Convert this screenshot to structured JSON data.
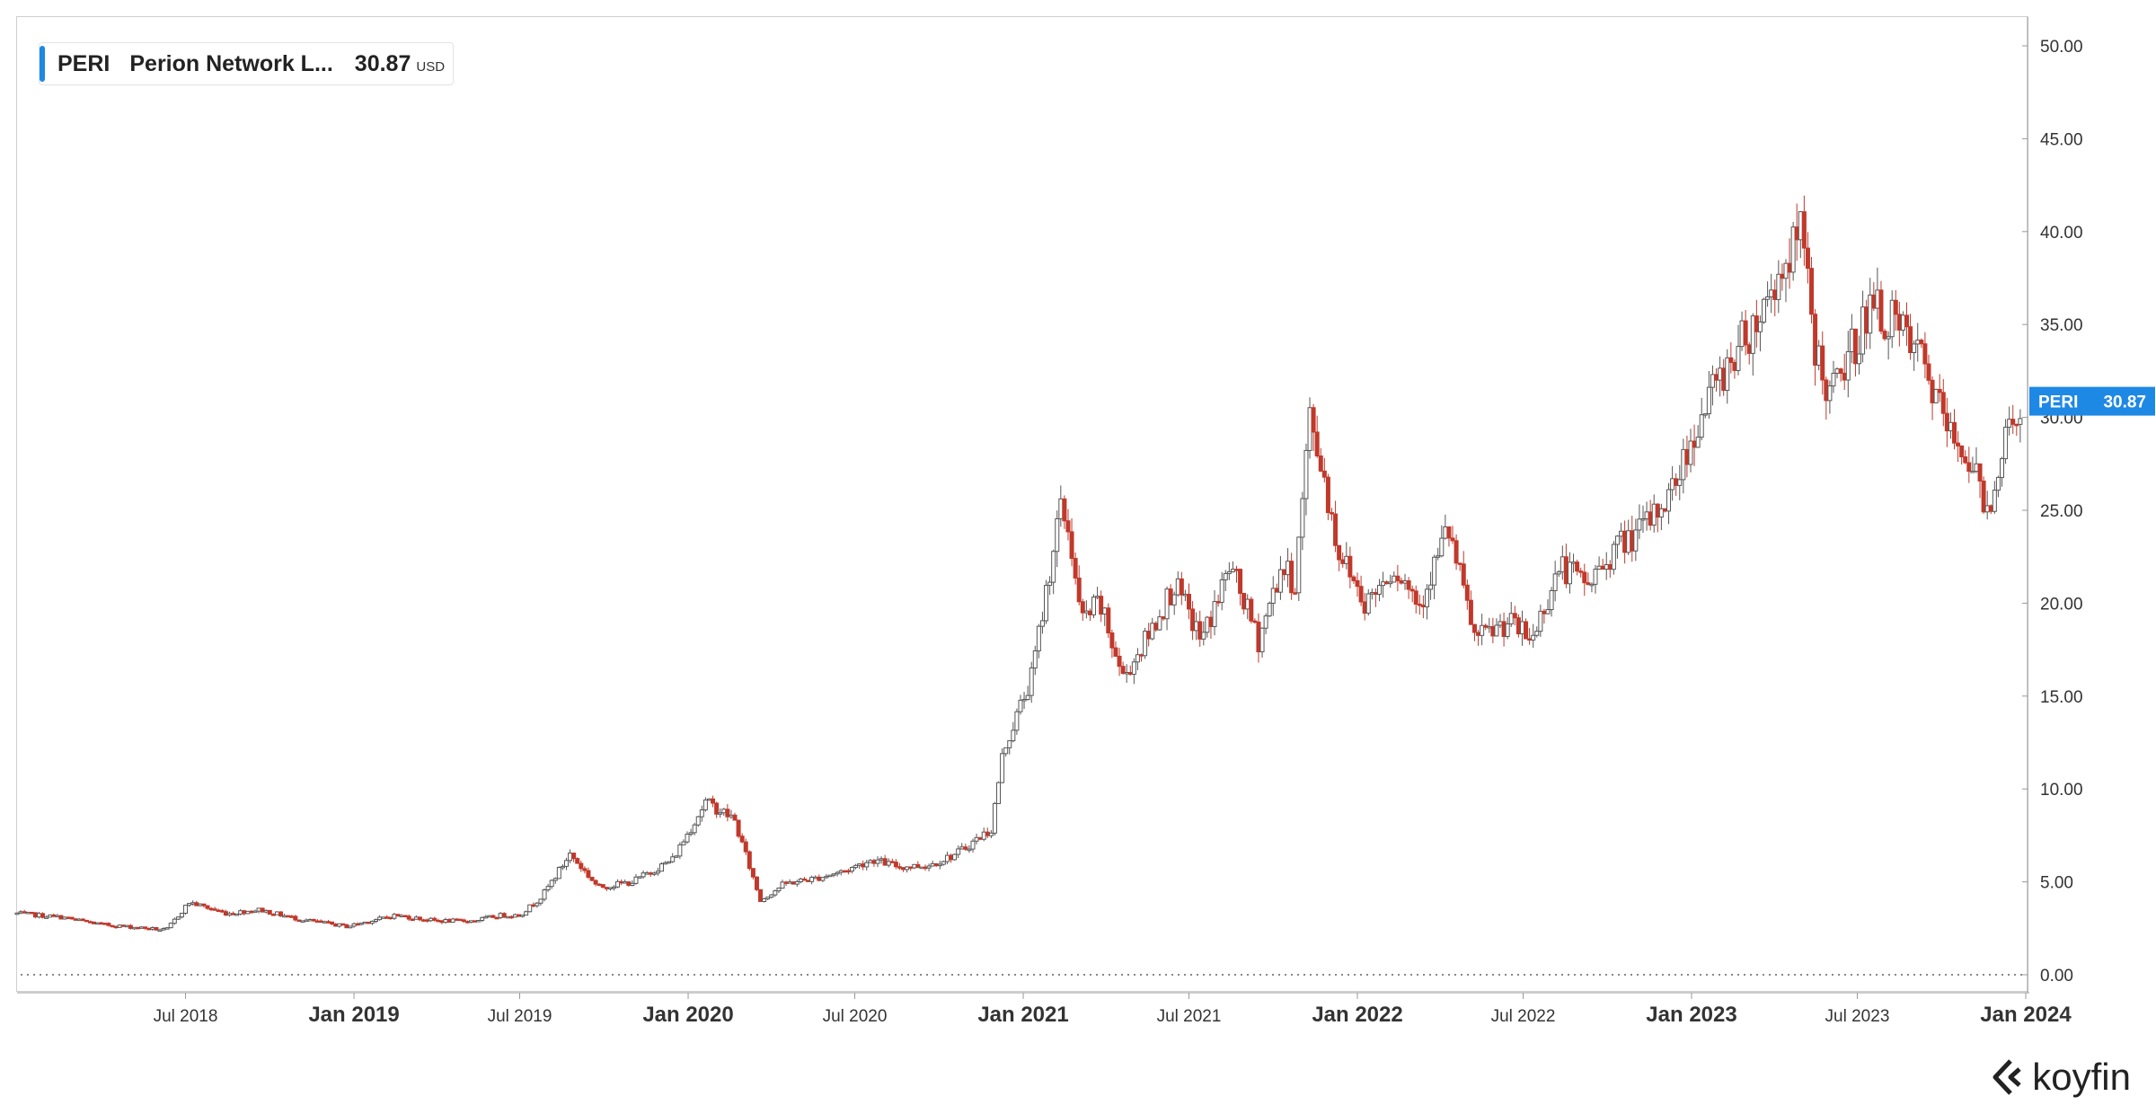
{
  "legend": {
    "ticker": "PERI",
    "name": "Perion Network L...",
    "price": "30.87",
    "currency": "USD",
    "accent": "#1e88e5"
  },
  "price_tag": {
    "ticker": "PERI",
    "value": "30.87",
    "color": "#1e88e5"
  },
  "brand": {
    "name": "koyfin",
    "logo_icon": "koyfin-chevron-icon"
  },
  "colors": {
    "up": "#555555",
    "down": "#c0392b",
    "grid_zero": "#888888"
  },
  "chart_data": {
    "type": "candlestick",
    "title": "",
    "xlabel": "",
    "ylabel": "",
    "ylim": [
      0,
      50
    ],
    "y_ticks": [
      "0.00",
      "5.00",
      "10.00",
      "15.00",
      "20.00",
      "25.00",
      "30.00",
      "35.00",
      "40.00",
      "45.00",
      "50.00"
    ],
    "x_ticks": [
      {
        "date": "2018-07-01",
        "label": "Jul 2018",
        "major": false
      },
      {
        "date": "2019-01-01",
        "label": "Jan 2019",
        "major": true
      },
      {
        "date": "2019-07-01",
        "label": "Jul 2019",
        "major": false
      },
      {
        "date": "2020-01-01",
        "label": "Jan 2020",
        "major": true
      },
      {
        "date": "2020-07-01",
        "label": "Jul 2020",
        "major": false
      },
      {
        "date": "2021-01-01",
        "label": "Jan 2021",
        "major": true
      },
      {
        "date": "2021-07-01",
        "label": "Jul 2021",
        "major": false
      },
      {
        "date": "2022-01-01",
        "label": "Jan 2022",
        "major": true
      },
      {
        "date": "2022-07-01",
        "label": "Jul 2022",
        "major": false
      },
      {
        "date": "2023-01-01",
        "label": "Jan 2023",
        "major": true
      },
      {
        "date": "2023-07-01",
        "label": "Jul 2023",
        "major": false
      },
      {
        "date": "2024-01-01",
        "label": "Jan 2024",
        "major": true
      }
    ],
    "x_range": [
      "2017-12-29",
      "2024-01-01"
    ],
    "series": [
      {
        "dates": [
          "2017-12-29",
          "2018-02-15",
          "2018-04-01",
          "2018-05-20",
          "2018-06-10",
          "2018-07-05",
          "2018-08-15",
          "2018-09-20",
          "2018-11-01",
          "2018-12-24",
          "2019-02-15",
          "2019-04-01",
          "2019-05-10",
          "2019-06-10",
          "2019-07-01",
          "2019-07-25",
          "2019-08-25",
          "2019-09-25",
          "2019-11-01",
          "2019-12-15",
          "2020-01-20",
          "2020-02-20",
          "2020-03-20",
          "2020-04-15",
          "2020-05-20",
          "2020-06-20",
          "2020-07-20",
          "2020-08-20",
          "2020-09-20",
          "2020-10-20",
          "2020-11-20",
          "2020-11-27",
          "2020-12-10",
          "2021-01-10",
          "2021-02-10",
          "2021-02-20",
          "2021-03-05",
          "2021-03-25",
          "2021-04-20",
          "2021-05-15",
          "2021-06-15",
          "2021-07-15",
          "2021-08-15",
          "2021-09-15",
          "2021-10-10",
          "2021-10-25",
          "2021-11-10",
          "2021-11-25",
          "2021-12-10",
          "2022-01-10",
          "2022-02-10",
          "2022-03-10",
          "2022-04-10",
          "2022-05-10",
          "2022-06-15",
          "2022-07-10",
          "2022-08-10",
          "2022-09-10",
          "2022-10-10",
          "2022-11-10",
          "2022-12-10",
          "2023-01-10",
          "2023-02-10",
          "2023-03-10",
          "2023-04-10",
          "2023-05-01",
          "2023-05-15",
          "2023-06-01",
          "2023-06-20",
          "2023-07-15",
          "2023-08-10",
          "2023-09-10",
          "2023-10-10",
          "2023-10-30",
          "2023-11-20",
          "2023-12-10",
          "2023-12-29"
        ],
        "close": [
          3.3,
          3.1,
          2.7,
          2.5,
          2.4,
          3.9,
          3.3,
          3.5,
          3.0,
          2.6,
          3.2,
          2.9,
          2.9,
          3.2,
          3.2,
          4.2,
          6.5,
          4.7,
          5.0,
          6.2,
          9.3,
          8.4,
          4.0,
          4.9,
          5.2,
          5.6,
          6.2,
          5.8,
          5.9,
          6.5,
          7.6,
          7.8,
          12.0,
          16.0,
          25.0,
          24.0,
          19.0,
          20.0,
          16.0,
          18.0,
          21.0,
          18.0,
          22.0,
          18.0,
          22.0,
          21.0,
          30.0,
          27.0,
          23.0,
          20.0,
          22.0,
          20.0,
          24.0,
          18.0,
          19.0,
          18.0,
          22.0,
          21.0,
          23.0,
          24.0,
          26.0,
          30.0,
          33.0,
          35.0,
          38.0,
          40.0,
          34.0,
          31.0,
          33.0,
          36.0,
          35.0,
          33.0,
          29.0,
          28.0,
          25.0,
          29.0,
          30.87
        ]
      }
    ]
  }
}
